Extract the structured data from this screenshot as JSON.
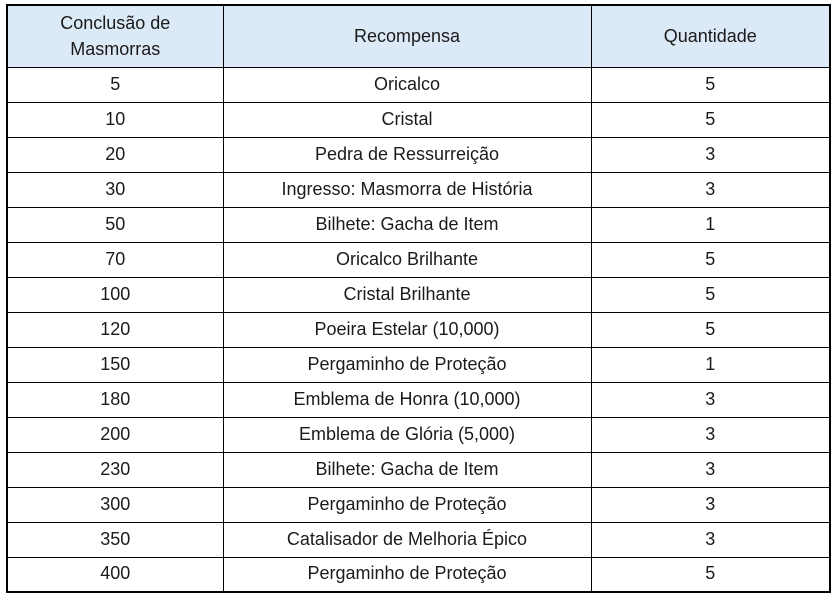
{
  "table": {
    "title_semantic": "dungeon-completion-rewards-table",
    "columns": [
      "Conclusão de Masmorras",
      "Recompensa",
      "Quantidade"
    ],
    "rows": [
      [
        "5",
        "Oricalco",
        "5"
      ],
      [
        "10",
        "Cristal",
        "5"
      ],
      [
        "20",
        "Pedra de Ressurreição",
        "3"
      ],
      [
        "30",
        "Ingresso: Masmorra de História",
        "3"
      ],
      [
        "50",
        "Bilhete: Gacha de Item",
        "1"
      ],
      [
        "70",
        "Oricalco Brilhante",
        "5"
      ],
      [
        "100",
        "Cristal Brilhante",
        "5"
      ],
      [
        "120",
        "Poeira Estelar (10,000)",
        "5"
      ],
      [
        "150",
        "Pergaminho de Proteção",
        "1"
      ],
      [
        "180",
        "Emblema de Honra (10,000)",
        "3"
      ],
      [
        "200",
        "Emblema de Glória (5,000)",
        "3"
      ],
      [
        "230",
        "Bilhete: Gacha de Item",
        "3"
      ],
      [
        "300",
        "Pergaminho de Proteção",
        "3"
      ],
      [
        "350",
        "Catalisador de Melhoria Épico",
        "3"
      ],
      [
        "400",
        "Pergaminho de Proteção",
        "5"
      ]
    ],
    "colors": {
      "header_background": "#dce9f6",
      "border": "#000000",
      "text": "#1b1b1b",
      "page_background": "#ffffff"
    }
  }
}
